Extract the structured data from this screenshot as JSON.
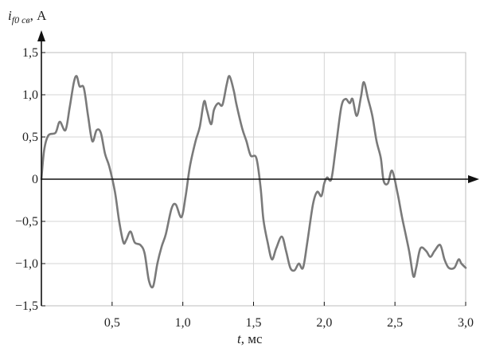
{
  "chart_data": {
    "type": "line",
    "ylabel_var": "i",
    "ylabel_sub": "f0 св",
    "ylabel_unit": ", А",
    "xlabel_var": "t",
    "xlabel_unit": ", мс",
    "xlim": [
      0,
      3.0
    ],
    "ylim": [
      -1.5,
      1.5
    ],
    "grid": true,
    "x_ticks": [
      0.5,
      1.0,
      1.5,
      2.0,
      2.5,
      3.0
    ],
    "x_tick_labels": [
      "0,5",
      "1,0",
      "1,5",
      "2,0",
      "2,5",
      "3,0"
    ],
    "y_ticks": [
      1.5,
      1.0,
      0.5,
      0,
      -0.5,
      -1.0,
      -1.5
    ],
    "y_tick_labels": [
      "1,5",
      "1,0",
      "0,5",
      "0",
      "−0,5",
      "−1,0",
      "−1,5"
    ],
    "series": [
      {
        "color": "#7a7a7a",
        "x": [
          0.0,
          0.02,
          0.05,
          0.1,
          0.13,
          0.17,
          0.2,
          0.23,
          0.25,
          0.27,
          0.3,
          0.33,
          0.36,
          0.39,
          0.42,
          0.45,
          0.48,
          0.52,
          0.55,
          0.58,
          0.6,
          0.63,
          0.66,
          0.7,
          0.73,
          0.76,
          0.79,
          0.82,
          0.85,
          0.88,
          0.92,
          0.95,
          0.99,
          1.02,
          1.05,
          1.09,
          1.12,
          1.15,
          1.17,
          1.2,
          1.22,
          1.25,
          1.28,
          1.31,
          1.33,
          1.36,
          1.38,
          1.42,
          1.45,
          1.48,
          1.52,
          1.55,
          1.57,
          1.6,
          1.63,
          1.66,
          1.7,
          1.73,
          1.76,
          1.79,
          1.82,
          1.85,
          1.88,
          1.92,
          1.95,
          1.98,
          2.0,
          2.02,
          2.05,
          2.08,
          2.12,
          2.15,
          2.18,
          2.2,
          2.23,
          2.26,
          2.28,
          2.31,
          2.34,
          2.37,
          2.4,
          2.42,
          2.45,
          2.48,
          2.52,
          2.55,
          2.6,
          2.63,
          2.65,
          2.68,
          2.72,
          2.75,
          2.78,
          2.82,
          2.85,
          2.88,
          2.92,
          2.95,
          2.97,
          3.0
        ],
        "y": [
          0.0,
          0.35,
          0.52,
          0.55,
          0.68,
          0.58,
          0.85,
          1.15,
          1.22,
          1.1,
          1.08,
          0.75,
          0.45,
          0.58,
          0.55,
          0.3,
          0.15,
          -0.15,
          -0.5,
          -0.75,
          -0.72,
          -0.62,
          -0.75,
          -0.78,
          -0.88,
          -1.2,
          -1.27,
          -1.0,
          -0.8,
          -0.65,
          -0.35,
          -0.3,
          -0.45,
          -0.2,
          0.15,
          0.45,
          0.62,
          0.92,
          0.82,
          0.65,
          0.82,
          0.9,
          0.88,
          1.12,
          1.22,
          1.05,
          0.88,
          0.6,
          0.45,
          0.28,
          0.25,
          -0.1,
          -0.48,
          -0.75,
          -0.95,
          -0.82,
          -0.68,
          -0.85,
          -1.05,
          -1.08,
          -1.0,
          -1.05,
          -0.75,
          -0.3,
          -0.15,
          -0.2,
          -0.05,
          0.02,
          0.0,
          0.35,
          0.85,
          0.95,
          0.9,
          0.95,
          0.75,
          0.98,
          1.15,
          0.95,
          0.75,
          0.45,
          0.25,
          -0.02,
          -0.05,
          0.1,
          -0.18,
          -0.45,
          -0.85,
          -1.15,
          -1.05,
          -0.82,
          -0.85,
          -0.92,
          -0.85,
          -0.78,
          -0.95,
          -1.05,
          -1.05,
          -0.95,
          -1.0,
          -1.05
        ]
      }
    ]
  }
}
